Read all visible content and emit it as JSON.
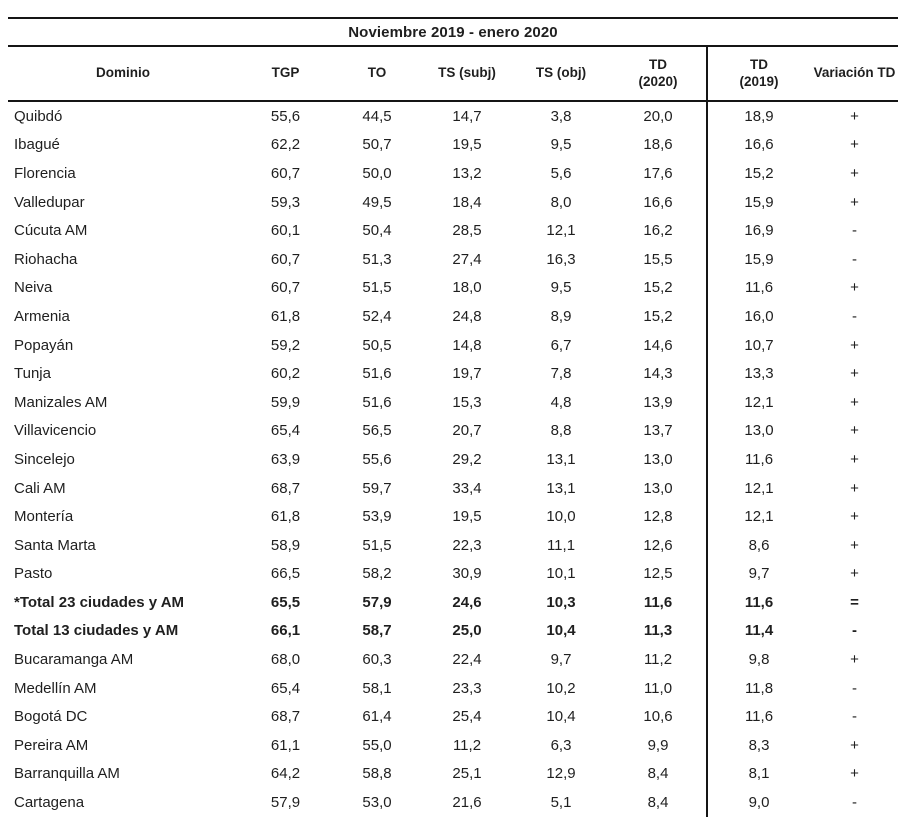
{
  "colors": {
    "background": "#ffffff",
    "text": "#1f1f1f",
    "line": "#151515"
  },
  "table": {
    "title": "Noviembre 2019 - enero 2020",
    "columns": [
      {
        "label": "Dominio",
        "sub": ""
      },
      {
        "label": "TGP",
        "sub": ""
      },
      {
        "label": "TO",
        "sub": ""
      },
      {
        "label": "TS (subj)",
        "sub": ""
      },
      {
        "label": "TS (obj)",
        "sub": ""
      },
      {
        "label": "TD",
        "sub": "(2020)"
      },
      {
        "label": "TD",
        "sub": "(2019)"
      },
      {
        "label": "Variación TD",
        "sub": ""
      }
    ],
    "rows": [
      {
        "dominio": "Quibdó",
        "values": [
          "55,6",
          "44,5",
          "14,7",
          "3,8",
          "20,0",
          "18,9",
          "+"
        ],
        "bold": false
      },
      {
        "dominio": "Ibagué",
        "values": [
          "62,2",
          "50,7",
          "19,5",
          "9,5",
          "18,6",
          "16,6",
          "+"
        ],
        "bold": false
      },
      {
        "dominio": "Florencia",
        "values": [
          "60,7",
          "50,0",
          "13,2",
          "5,6",
          "17,6",
          "15,2",
          "+"
        ],
        "bold": false
      },
      {
        "dominio": "Valledupar",
        "values": [
          "59,3",
          "49,5",
          "18,4",
          "8,0",
          "16,6",
          "15,9",
          "+"
        ],
        "bold": false
      },
      {
        "dominio": "Cúcuta AM",
        "values": [
          "60,1",
          "50,4",
          "28,5",
          "12,1",
          "16,2",
          "16,9",
          "-"
        ],
        "bold": false
      },
      {
        "dominio": "Riohacha",
        "values": [
          "60,7",
          "51,3",
          "27,4",
          "16,3",
          "15,5",
          "15,9",
          "-"
        ],
        "bold": false
      },
      {
        "dominio": "Neiva",
        "values": [
          "60,7",
          "51,5",
          "18,0",
          "9,5",
          "15,2",
          "11,6",
          "+"
        ],
        "bold": false
      },
      {
        "dominio": "Armenia",
        "values": [
          "61,8",
          "52,4",
          "24,8",
          "8,9",
          "15,2",
          "16,0",
          "-"
        ],
        "bold": false
      },
      {
        "dominio": "Popayán",
        "values": [
          "59,2",
          "50,5",
          "14,8",
          "6,7",
          "14,6",
          "10,7",
          "+"
        ],
        "bold": false
      },
      {
        "dominio": "Tunja",
        "values": [
          "60,2",
          "51,6",
          "19,7",
          "7,8",
          "14,3",
          "13,3",
          "+"
        ],
        "bold": false
      },
      {
        "dominio": "Manizales AM",
        "values": [
          "59,9",
          "51,6",
          "15,3",
          "4,8",
          "13,9",
          "12,1",
          "+"
        ],
        "bold": false
      },
      {
        "dominio": "Villavicencio",
        "values": [
          "65,4",
          "56,5",
          "20,7",
          "8,8",
          "13,7",
          "13,0",
          "+"
        ],
        "bold": false
      },
      {
        "dominio": "Sincelejo",
        "values": [
          "63,9",
          "55,6",
          "29,2",
          "13,1",
          "13,0",
          "11,6",
          "+"
        ],
        "bold": false
      },
      {
        "dominio": "Cali AM",
        "values": [
          "68,7",
          "59,7",
          "33,4",
          "13,1",
          "13,0",
          "12,1",
          "+"
        ],
        "bold": false
      },
      {
        "dominio": "Montería",
        "values": [
          "61,8",
          "53,9",
          "19,5",
          "10,0",
          "12,8",
          "12,1",
          "+"
        ],
        "bold": false
      },
      {
        "dominio": "Santa Marta",
        "values": [
          "58,9",
          "51,5",
          "22,3",
          "11,1",
          "12,6",
          "8,6",
          "+"
        ],
        "bold": false
      },
      {
        "dominio": "Pasto",
        "values": [
          "66,5",
          "58,2",
          "30,9",
          "10,1",
          "12,5",
          "9,7",
          "+"
        ],
        "bold": false
      },
      {
        "dominio": "*Total 23 ciudades y AM",
        "values": [
          "65,5",
          "57,9",
          "24,6",
          "10,3",
          "11,6",
          "11,6",
          "="
        ],
        "bold": true
      },
      {
        "dominio": "Total 13 ciudades y AM",
        "values": [
          "66,1",
          "58,7",
          "25,0",
          "10,4",
          "11,3",
          "11,4",
          "-"
        ],
        "bold": true
      },
      {
        "dominio": "Bucaramanga AM",
        "values": [
          "68,0",
          "60,3",
          "22,4",
          "9,7",
          "11,2",
          "9,8",
          "+"
        ],
        "bold": false
      },
      {
        "dominio": "Medellín AM",
        "values": [
          "65,4",
          "58,1",
          "23,3",
          "10,2",
          "11,0",
          "11,8",
          "-"
        ],
        "bold": false
      },
      {
        "dominio": "Bogotá DC",
        "values": [
          "68,7",
          "61,4",
          "25,4",
          "10,4",
          "10,6",
          "11,6",
          "-"
        ],
        "bold": false
      },
      {
        "dominio": "Pereira AM",
        "values": [
          "61,1",
          "55,0",
          "11,2",
          "6,3",
          "9,9",
          "8,3",
          "+"
        ],
        "bold": false
      },
      {
        "dominio": "Barranquilla AM",
        "values": [
          "64,2",
          "58,8",
          "25,1",
          "12,9",
          "8,4",
          "8,1",
          "+"
        ],
        "bold": false
      },
      {
        "dominio": "Cartagena",
        "values": [
          "57,9",
          "53,0",
          "21,6",
          "5,1",
          "8,4",
          "9,0",
          "-"
        ],
        "bold": false
      }
    ]
  }
}
